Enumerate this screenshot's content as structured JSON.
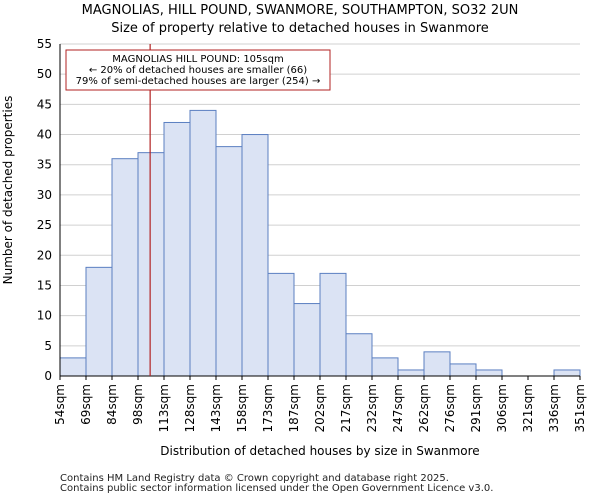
{
  "title_line1": "MAGNOLIAS, HILL POUND, SWANMORE, SOUTHAMPTON, SO32 2UN",
  "title_line2": "Size of property relative to detached houses in Swanmore",
  "footer_line1": "Contains HM Land Registry data © Crown copyright and database right 2025.",
  "footer_line2": "Contains public sector information licensed under the Open Government Licence v3.0.",
  "colors": {
    "bar_fill": "#dbe3f4",
    "bar_stroke": "#5b7fc1",
    "marker": "#b22222",
    "grid": "#d0d0d0"
  },
  "chart_data": {
    "type": "bar",
    "xlabel": "Distribution of detached houses by size in Swanmore",
    "ylabel": "Number of detached properties",
    "ylim": [
      0,
      55
    ],
    "yticks": [
      0,
      5,
      10,
      15,
      20,
      25,
      30,
      35,
      40,
      45,
      50,
      55
    ],
    "bin_edges": [
      "54sqm",
      "69sqm",
      "84sqm",
      "98sqm",
      "113sqm",
      "128sqm",
      "143sqm",
      "158sqm",
      "173sqm",
      "187sqm",
      "202sqm",
      "217sqm",
      "232sqm",
      "247sqm",
      "262sqm",
      "276sqm",
      "291sqm",
      "306sqm",
      "321sqm",
      "336sqm",
      "351sqm"
    ],
    "values": [
      3,
      18,
      36,
      37,
      42,
      44,
      38,
      40,
      17,
      12,
      17,
      7,
      3,
      1,
      4,
      2,
      1,
      0,
      0,
      1
    ],
    "marker_value_sqm": 105,
    "annotation": {
      "line1": "MAGNOLIAS HILL POUND: 105sqm",
      "line2": "← 20% of detached houses are smaller (66)",
      "line3": "79% of semi-detached houses are larger (254) →"
    }
  }
}
